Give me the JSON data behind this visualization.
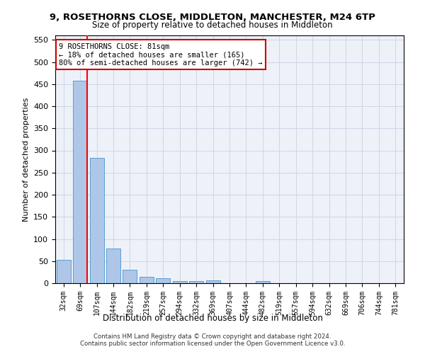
{
  "title": "9, ROSETHORNS CLOSE, MIDDLETON, MANCHESTER, M24 6TP",
  "subtitle": "Size of property relative to detached houses in Middleton",
  "xlabel": "Distribution of detached houses by size in Middleton",
  "ylabel": "Number of detached properties",
  "categories": [
    "32sqm",
    "69sqm",
    "107sqm",
    "144sqm",
    "182sqm",
    "219sqm",
    "257sqm",
    "294sqm",
    "332sqm",
    "369sqm",
    "407sqm",
    "444sqm",
    "482sqm",
    "519sqm",
    "557sqm",
    "594sqm",
    "632sqm",
    "669sqm",
    "706sqm",
    "744sqm",
    "781sqm"
  ],
  "values": [
    53,
    457,
    283,
    78,
    30,
    15,
    11,
    5,
    5,
    6,
    0,
    0,
    5,
    0,
    0,
    0,
    0,
    0,
    0,
    0,
    0
  ],
  "bar_color": "#aec6e8",
  "bar_edge_color": "#5a9fd4",
  "grid_color": "#d0d8e8",
  "background_color": "#eef2f8",
  "ylim": [
    0,
    560
  ],
  "yticks": [
    0,
    50,
    100,
    150,
    200,
    250,
    300,
    350,
    400,
    450,
    500,
    550
  ],
  "red_line_x": 1.4,
  "annotation_text": "9 ROSETHORNS CLOSE: 81sqm\n← 18% of detached houses are smaller (165)\n80% of semi-detached houses are larger (742) →",
  "annotation_box_color": "#ffffff",
  "annotation_box_edge": "#cc0000",
  "footer1": "Contains HM Land Registry data © Crown copyright and database right 2024.",
  "footer2": "Contains public sector information licensed under the Open Government Licence v3.0."
}
